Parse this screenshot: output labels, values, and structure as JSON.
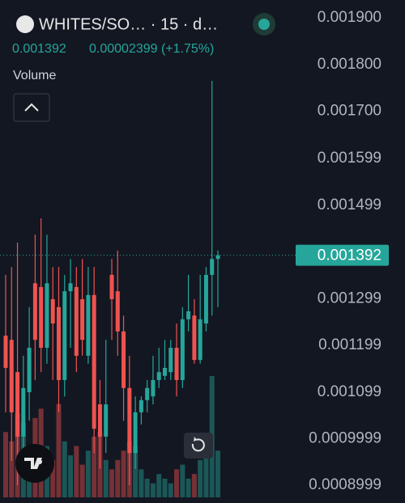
{
  "chart_data": {
    "type": "candlestick",
    "symbol": "WHITES/SO… · 15 · d…",
    "last_price": 0.001392,
    "change": "0.00002399 (+1.75%)",
    "volume_label": "Volume",
    "up_color": "#26a69a",
    "down_color": "#ef5350",
    "ylim": [
      0.000862,
      0.001938
    ],
    "yticks": [
      {
        "value": 0.0019,
        "label": "0.001900"
      },
      {
        "value": 0.0018,
        "label": "0.001800"
      },
      {
        "value": 0.0017,
        "label": "0.001700"
      },
      0.001599,
      0.001499,
      0.001299,
      0.001199,
      0.001099,
      0.0009999,
      0.0008999
    ],
    "open": [
      0.00122,
      0.001211,
      0.001142,
      0.001004,
      0.001099,
      0.001332,
      0.001324,
      0.001194,
      0.001298,
      0.001281,
      0.001125,
      0.001315,
      0.001324,
      0.001298,
      0.001177,
      0.001307,
      0.001073,
      0.001004,
      0.00135,
      0.001315,
      0.001229,
      0.001108,
      0.000969,
      0.001056,
      0.001082,
      0.00109,
      0.001125,
      0.001134,
      0.001142,
      0.001194,
      0.001125,
      0.001255,
      0.001263,
      0.001168,
      0.001246,
      0.00135,
      0.001384
    ],
    "high": [
      0.00135,
      0.001367,
      0.001419,
      0.001177,
      0.001281,
      0.001436,
      0.001471,
      0.001436,
      0.001367,
      0.001367,
      0.00135,
      0.001384,
      0.001367,
      0.001384,
      0.001367,
      0.001367,
      0.001125,
      0.001211,
      0.001384,
      0.001402,
      0.001263,
      0.001177,
      0.00109,
      0.00109,
      0.001125,
      0.001177,
      0.001194,
      0.001211,
      0.001211,
      0.001246,
      0.001281,
      0.00135,
      0.001298,
      0.00135,
      0.001367,
      0.001765,
      0.001402
    ],
    "low": [
      0.001056,
      0.000952,
      0.0009,
      0.000917,
      0.001038,
      0.001125,
      0.001142,
      0.00116,
      0.001125,
      0.001056,
      0.00109,
      0.001194,
      0.001142,
      0.001177,
      0.00116,
      0.000969,
      0.000935,
      0.000969,
      0.001211,
      0.001177,
      0.001038,
      0.0009,
      0.000935,
      0.00103,
      0.001056,
      0.001073,
      0.001108,
      0.001125,
      0.001125,
      0.00109,
      0.001108,
      0.001229,
      0.00116,
      0.00116,
      0.001229,
      0.001263,
      0.001281
    ],
    "close": [
      0.001151,
      0.001056,
      0.001004,
      0.001108,
      0.001194,
      0.001211,
      0.001194,
      0.001332,
      0.001246,
      0.001125,
      0.001315,
      0.001332,
      0.001177,
      0.001211,
      0.001307,
      0.001021,
      0.001004,
      0.001073,
      0.001298,
      0.001229,
      0.001108,
      0.000969,
      0.001056,
      0.001082,
      0.001108,
      0.001125,
      0.001142,
      0.001151,
      0.001194,
      0.001125,
      0.001255,
      0.001272,
      0.001168,
      0.001255,
      0.00135,
      0.001384,
      0.001392
    ],
    "volume": [
      70,
      60,
      90,
      80,
      50,
      85,
      95,
      55,
      40,
      100,
      60,
      45,
      55,
      35,
      50,
      65,
      70,
      40,
      30,
      40,
      50,
      60,
      55,
      30,
      20,
      15,
      25,
      20,
      15,
      30,
      35,
      20,
      25,
      40,
      45,
      130,
      50
    ]
  }
}
